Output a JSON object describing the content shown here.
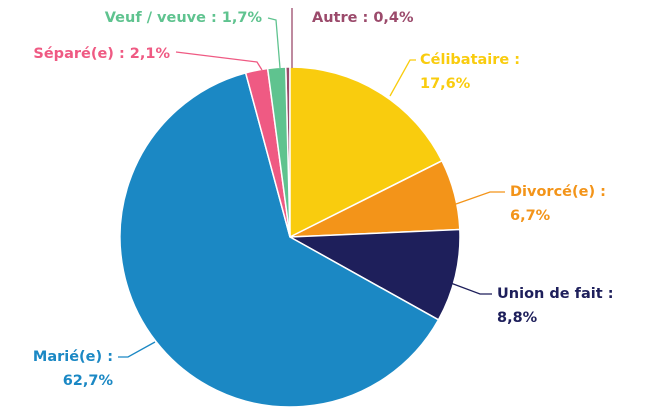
{
  "chart_data": {
    "type": "pie",
    "categories": [
      "Autre :",
      "Célibataire :",
      "Divorcé(e) :",
      "Union de fait :",
      "Marié(e) :",
      "Séparé(e) :",
      "Veuf / veuve :"
    ],
    "values": [
      0.4,
      17.6,
      6.7,
      8.8,
      62.7,
      2.1,
      1.7
    ],
    "value_labels": [
      "0,4%",
      "17,6%",
      "6,7%",
      "8,8%",
      "62,7%",
      "2,1%",
      "1,7%"
    ],
    "colors": [
      "#9b4a6b",
      "#f9cc0e",
      "#f39419",
      "#1e1f5b",
      "#1b88c4",
      "#ef5a83",
      "#5fc38f"
    ]
  }
}
